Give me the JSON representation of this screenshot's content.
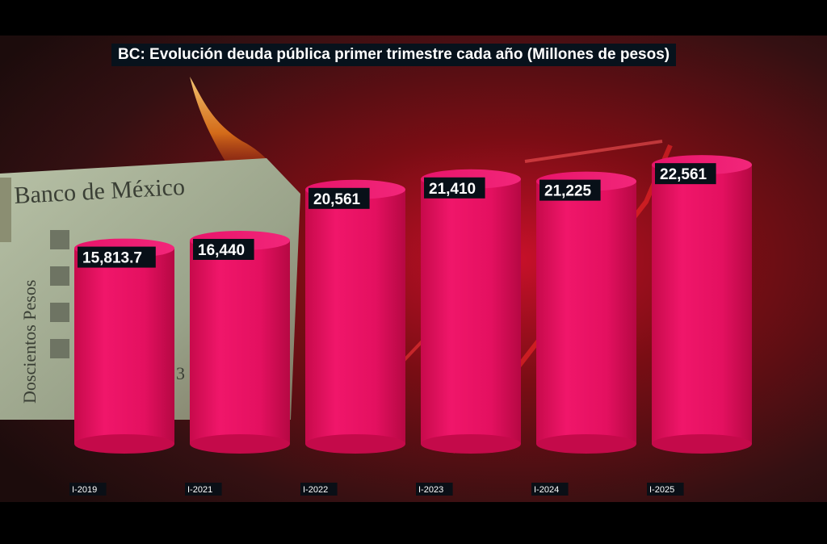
{
  "chart_data": {
    "type": "bar",
    "title": "BC: Evolución deuda pública primer trimestre cada año (Millones de pesos)",
    "categories": [
      "I-2019",
      "I-2021",
      "I-2022",
      "I-2023",
      "I-2024",
      "I-2025"
    ],
    "values": [
      15813.7,
      16440,
      20561,
      21410,
      21225,
      22561
    ],
    "value_labels": [
      "15,813.7",
      "16,440",
      "20,561",
      "21,410",
      "21,225",
      "22,561"
    ],
    "bar_style": "cylinder",
    "bar_color": "#e8105a",
    "grid": false
  },
  "background": {
    "bill_heading": "Banco de México",
    "bill_denomination": "Doscientos Pesos",
    "bill_fragment": "3"
  }
}
